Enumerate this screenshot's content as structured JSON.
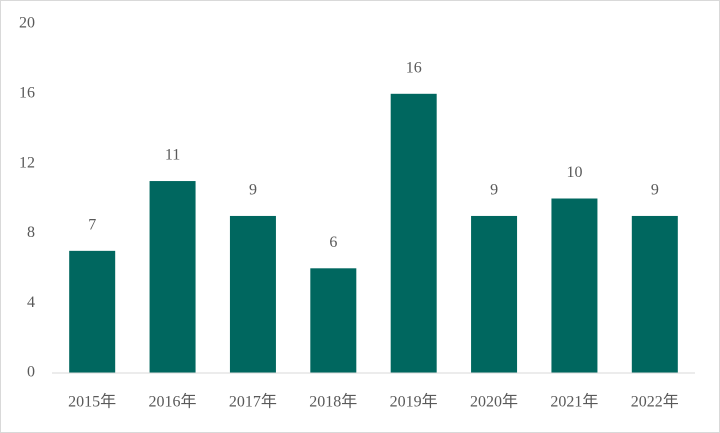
{
  "chart_data": {
    "type": "bar",
    "categories": [
      "2015年",
      "2016年",
      "2017年",
      "2018年",
      "2019年",
      "2020年",
      "2021年",
      "2022年"
    ],
    "values": [
      7,
      11,
      9,
      6,
      16,
      9,
      10,
      9
    ],
    "color": "#00675f",
    "ylim": [
      0,
      20
    ],
    "yticks": [
      0,
      4,
      8,
      12,
      16,
      20
    ],
    "grid": false
  }
}
